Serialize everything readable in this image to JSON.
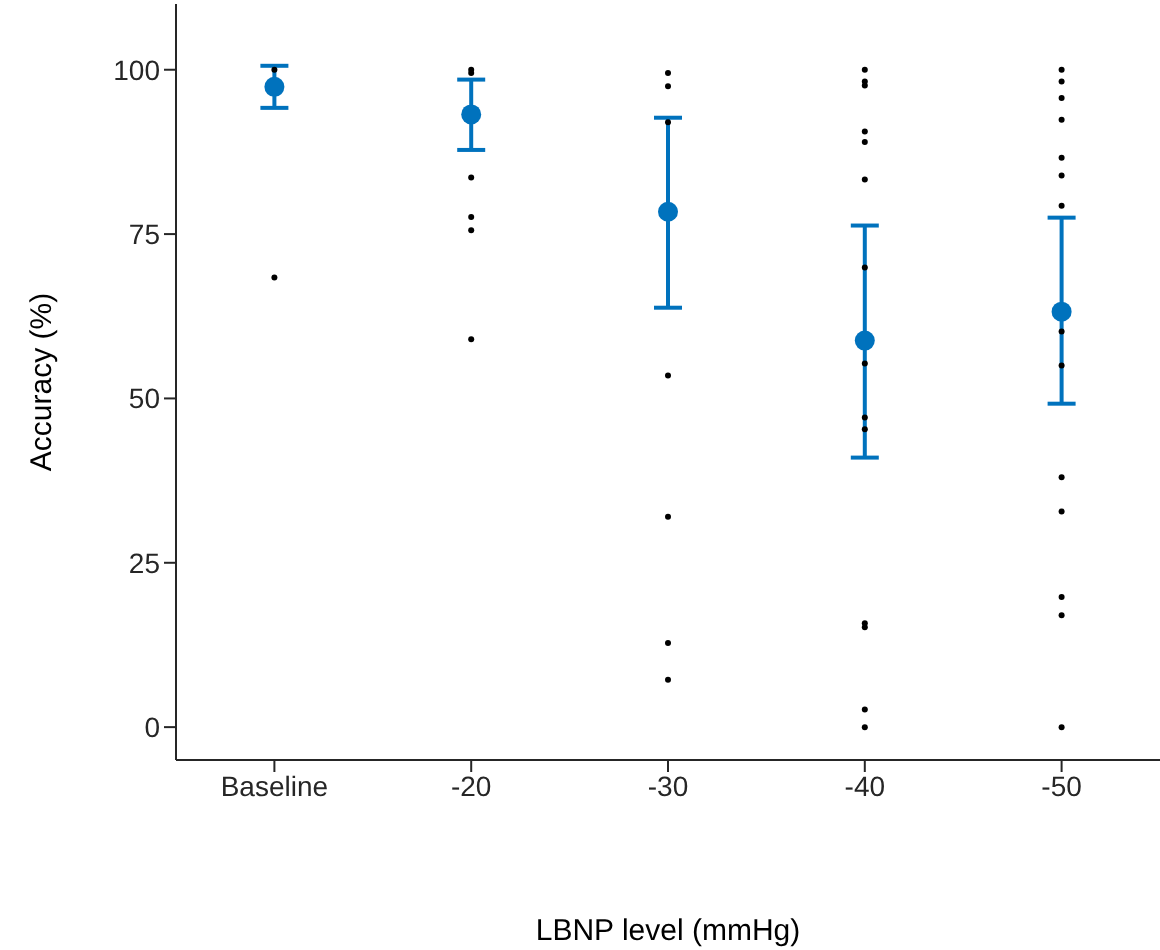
{
  "chart_data": {
    "type": "scatter",
    "xlabel": "LBNP level (mmHg)",
    "ylabel": "Accuracy (%)",
    "categories": [
      "Baseline",
      "-20",
      "-30",
      "-40",
      "-50"
    ],
    "series": [
      {
        "color": "#000000",
        "x": [
          "Baseline",
          "Baseline",
          "-20",
          "-20",
          "-20",
          "-20",
          "-20",
          "-20",
          "-30",
          "-30",
          "-30",
          "-30",
          "-30",
          "-30",
          "-30",
          "-40",
          "-40",
          "-40",
          "-40",
          "-40",
          "-40",
          "-40",
          "-40",
          "-40",
          "-40",
          "-40",
          "-40",
          "-40",
          "-40",
          "-50",
          "-50",
          "-50",
          "-50",
          "-50",
          "-50",
          "-50",
          "-50",
          "-50",
          "-50",
          "-50",
          "-50",
          "-50",
          "-50"
        ],
        "values": [
          100,
          68.4,
          100,
          99.5,
          83.6,
          77.6,
          75.6,
          59,
          99.5,
          97.5,
          92,
          53.5,
          32,
          12.8,
          7.2,
          100,
          98.2,
          97.6,
          90.6,
          89,
          83.3,
          69.9,
          55.3,
          47.1,
          45.3,
          15.8,
          15.2,
          2.7,
          0,
          100,
          98.2,
          95.7,
          92.4,
          86.6,
          83.9,
          79.3,
          60.2,
          55,
          38,
          32.8,
          19.8,
          17,
          0
        ]
      },
      {
        "color": "#0072bd",
        "values": [
          97.4,
          93.2,
          78.4,
          58.8,
          63.2
        ],
        "errors": [
          [
            94.2,
            100.6
          ],
          [
            87.8,
            98.5
          ],
          [
            63.8,
            92.7
          ],
          [
            41,
            76.3
          ],
          [
            49.2,
            77.5
          ]
        ]
      }
    ],
    "ylim": [
      -5,
      110
    ],
    "yticks": [
      0,
      25,
      50,
      75,
      100
    ],
    "grid": false,
    "marker": "circle"
  }
}
